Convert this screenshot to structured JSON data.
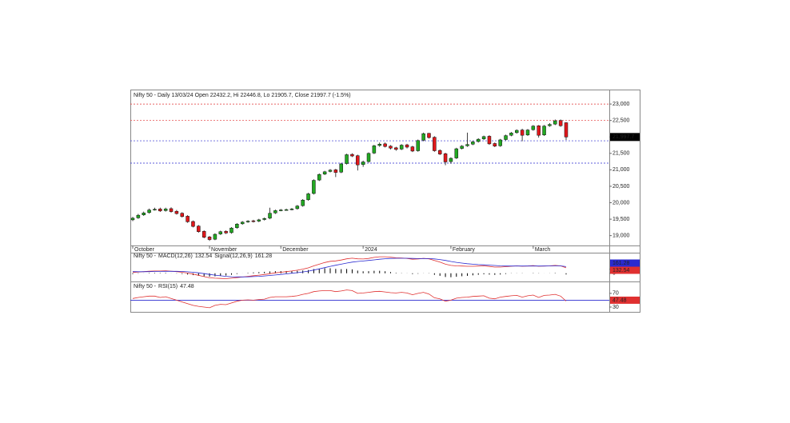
{
  "chart_data": [
    {
      "type": "candlestick",
      "title": "Nifty 50 - Daily 13/03/24 Open 22432.2, Hi 22446.8, Lo 21905.7, Close 21997.7 (-1.5%)",
      "categories": [
        "October",
        null,
        null,
        null,
        null,
        null,
        null,
        null,
        null,
        null,
        null,
        null,
        null,
        null,
        "November",
        null,
        null,
        null,
        null,
        null,
        null,
        null,
        null,
        null,
        null,
        null,
        null,
        "December",
        null,
        null,
        null,
        null,
        null,
        null,
        null,
        null,
        null,
        null,
        null,
        null,
        null,
        null,
        "2024",
        null,
        null,
        null,
        null,
        null,
        null,
        null,
        null,
        null,
        null,
        null,
        null,
        null,
        null,
        null,
        "February",
        null,
        null,
        null,
        null,
        null,
        null,
        null,
        null,
        null,
        null,
        null,
        null,
        null,
        null,
        "March",
        null,
        null,
        null,
        null,
        null,
        null
      ],
      "open": [
        19480,
        19540,
        19630,
        19700,
        19790,
        19810,
        19760,
        19820,
        19740,
        19680,
        19590,
        19430,
        19290,
        19130,
        18960,
        18890,
        19050,
        19130,
        19090,
        19240,
        19360,
        19420,
        19450,
        19440,
        19490,
        19530,
        19690,
        19770,
        19790,
        19800,
        19820,
        19910,
        20090,
        20280,
        20690,
        20870,
        20950,
        21000,
        20930,
        21190,
        21470,
        21430,
        21160,
        21250,
        21510,
        21740,
        21790,
        21720,
        21670,
        21630,
        21760,
        21700,
        21580,
        21900,
        22110,
        21990,
        21590,
        21490,
        21250,
        21360,
        21650,
        21730,
        21780,
        21860,
        21940,
        22020,
        21800,
        21730,
        21920,
        22050,
        22130,
        22210,
        22060,
        22220,
        22340,
        22060,
        22340,
        22390,
        22500,
        22432.2
      ],
      "high": [
        19570,
        19660,
        19730,
        19820,
        19849,
        19850,
        19850,
        19860,
        19780,
        19710,
        19620,
        19460,
        19320,
        19160,
        18990,
        19070,
        19150,
        19160,
        19260,
        19380,
        19440,
        19470,
        19480,
        19510,
        19550,
        19850,
        19790,
        19810,
        19820,
        19840,
        19930,
        20110,
        20300,
        20710,
        20890,
        20970,
        21020,
        21030,
        21210,
        21490,
        21500,
        21460,
        21280,
        21530,
        21760,
        21830,
        21830,
        21750,
        21700,
        21780,
        21790,
        21730,
        21920,
        22130,
        22120,
        22020,
        21620,
        21520,
        21380,
        21670,
        21750,
        22130,
        21880,
        21960,
        22040,
        22050,
        21830,
        21940,
        22070,
        22150,
        22230,
        22250,
        22240,
        22360,
        22360,
        22360,
        22420,
        22530,
        22530,
        22446.8
      ],
      "low": [
        19440,
        19510,
        19600,
        19670,
        19760,
        19720,
        19730,
        19700,
        19640,
        19550,
        19390,
        19250,
        19090,
        18920,
        18840,
        18860,
        19020,
        19050,
        19060,
        19210,
        19330,
        19390,
        19400,
        19410,
        19460,
        19500,
        19660,
        19740,
        19760,
        19770,
        19790,
        19880,
        20060,
        20250,
        20660,
        20840,
        20920,
        20780,
        20900,
        21160,
        21390,
        20980,
        21090,
        21220,
        21480,
        21700,
        21680,
        21620,
        21580,
        21600,
        21650,
        21540,
        21550,
        21870,
        21950,
        21550,
        21450,
        21140,
        21190,
        21330,
        21620,
        21700,
        21750,
        21830,
        21910,
        21760,
        21690,
        21700,
        21890,
        22020,
        22100,
        21870,
        22030,
        22190,
        21980,
        22030,
        22310,
        22360,
        22310,
        21905.7
      ],
      "close": [
        19530,
        19620,
        19690,
        19780,
        19800,
        19750,
        19810,
        19730,
        19670,
        19580,
        19420,
        19280,
        19120,
        18950,
        18880,
        19040,
        19120,
        19080,
        19230,
        19350,
        19410,
        19440,
        19430,
        19480,
        19520,
        19680,
        19760,
        19780,
        19790,
        19810,
        19900,
        20080,
        20270,
        20680,
        20860,
        20940,
        20990,
        20920,
        21180,
        21460,
        21420,
        21150,
        21240,
        21500,
        21730,
        21780,
        21710,
        21660,
        21620,
        21750,
        21690,
        21570,
        21890,
        22100,
        21980,
        21580,
        21480,
        21240,
        21350,
        21640,
        21720,
        21770,
        21850,
        21930,
        22010,
        21790,
        21720,
        21910,
        22040,
        22120,
        22200,
        22050,
        22210,
        22330,
        22050,
        22330,
        22380,
        22490,
        22340,
        21997.7
      ],
      "up_color": "#22a822",
      "down_color": "#e0181c",
      "last_label": {
        "value": 21997.7,
        "label": "21,997.7"
      },
      "ylim": [
        18700,
        23440
      ],
      "yticks": [
        {
          "value": 19000,
          "label": "19,000"
        },
        {
          "value": 19500,
          "label": "19,500"
        },
        {
          "value": 20000,
          "label": "20,000"
        },
        {
          "value": 20500,
          "label": "20,500"
        },
        {
          "value": 21000,
          "label": "21,000"
        },
        {
          "value": 21500,
          "label": "21,500"
        },
        {
          "value": 22000,
          "label": "22,000"
        },
        {
          "value": 22500,
          "label": "22,500"
        },
        {
          "value": 23000,
          "label": "23,000"
        }
      ],
      "levels": [
        {
          "value": 23000,
          "color": "#e03030"
        },
        {
          "value": 22500,
          "color": "#e03030"
        },
        {
          "value": 21883,
          "color": "#2a2ad0"
        },
        {
          "value": 21204,
          "color": "#2a2ad0"
        }
      ]
    },
    {
      "type": "macd",
      "title": "Nifty 50 -",
      "series": [
        {
          "name": "MACD(12,26)",
          "color": "#e03030",
          "values": [
            20,
            30,
            40,
            50,
            55,
            55,
            60,
            50,
            40,
            25,
            5,
            -20,
            -50,
            -80,
            -110,
            -120,
            -125,
            -130,
            -120,
            -105,
            -90,
            -75,
            -60,
            -45,
            -30,
            -10,
            10,
            25,
            40,
            55,
            75,
            100,
            130,
            180,
            220,
            260,
            290,
            300,
            320,
            350,
            365,
            350,
            345,
            360,
            385,
            400,
            400,
            390,
            375,
            370,
            360,
            340,
            345,
            360,
            350,
            310,
            270,
            220,
            190,
            180,
            175,
            170,
            170,
            175,
            180,
            165,
            150,
            150,
            160,
            170,
            180,
            170,
            175,
            185,
            170,
            175,
            180,
            190,
            180,
            132.54
          ]
        },
        {
          "name": "Signal(12,26,9)",
          "color": "#2a2ad0",
          "values": [
            40,
            38,
            38,
            40,
            43,
            45,
            48,
            48,
            47,
            43,
            36,
            25,
            10,
            -8,
            -28,
            -46,
            -62,
            -75,
            -84,
            -88,
            -89,
            -86,
            -81,
            -74,
            -65,
            -54,
            -41,
            -28,
            -14,
            0,
            15,
            32,
            52,
            78,
            106,
            137,
            168,
            194,
            220,
            246,
            270,
            286,
            298,
            310,
            325,
            340,
            352,
            360,
            363,
            364,
            363,
            359,
            356,
            357,
            356,
            347,
            332,
            310,
            286,
            265,
            247,
            232,
            220,
            211,
            205,
            197,
            188,
            180,
            176,
            175,
            176,
            175,
            175,
            177,
            176,
            176,
            177,
            180,
            180,
            161.28
          ]
        }
      ],
      "histogram": {
        "color": "#000000",
        "values": [
          -20,
          -8,
          2,
          10,
          12,
          10,
          12,
          2,
          -7,
          -18,
          -31,
          -45,
          -60,
          -72,
          -82,
          -74,
          -63,
          -55,
          -36,
          -17,
          -1,
          11,
          21,
          29,
          35,
          44,
          51,
          53,
          54,
          55,
          60,
          68,
          78,
          102,
          114,
          123,
          122,
          106,
          100,
          104,
          95,
          64,
          47,
          50,
          60,
          60,
          48,
          30,
          12,
          6,
          -3,
          -19,
          -11,
          3,
          -6,
          -37,
          -62,
          -90,
          -96,
          -85,
          -72,
          -62,
          -50,
          -36,
          -25,
          -32,
          -38,
          -30,
          -16,
          -5,
          4,
          -5,
          0,
          8,
          -6,
          -1,
          3,
          10,
          0,
          -28.74
        ]
      },
      "ylim": [
        -160,
        460
      ],
      "yticks": [
        0,
        100
      ]
    },
    {
      "type": "line",
      "title": "Nifty 50 -",
      "series": [
        {
          "name": "RSI(15)",
          "color": "#e03030",
          "values": [
            55,
            58,
            60,
            62,
            62,
            58,
            60,
            55,
            50,
            45,
            40,
            35,
            32,
            30,
            28,
            35,
            38,
            37,
            42,
            47,
            50,
            51,
            50,
            52,
            53,
            58,
            60,
            60,
            60,
            61,
            63,
            67,
            70,
            75,
            77,
            78,
            78,
            75,
            77,
            80,
            78,
            70,
            71,
            73,
            75,
            76,
            74,
            72,
            71,
            73,
            71,
            66,
            70,
            73,
            68,
            57,
            54,
            47,
            50,
            56,
            58,
            59,
            61,
            62,
            63,
            56,
            54,
            59,
            61,
            63,
            64,
            59,
            63,
            65,
            58,
            64,
            65,
            67,
            62,
            47.48
          ]
        }
      ],
      "ref_line": {
        "value": 50,
        "color": "#2a2ad0"
      },
      "ylim": [
        16,
        100
      ],
      "yticks": [
        30,
        70
      ]
    }
  ]
}
